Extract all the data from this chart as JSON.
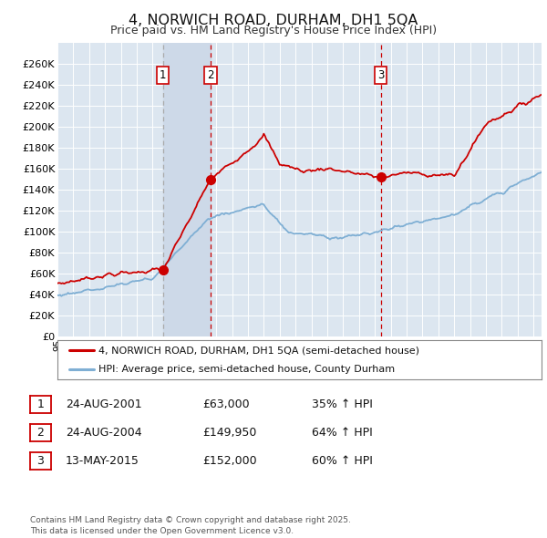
{
  "title": "4, NORWICH ROAD, DURHAM, DH1 5QA",
  "subtitle": "Price paid vs. HM Land Registry's House Price Index (HPI)",
  "background_color": "#ffffff",
  "plot_bg_color": "#dce6f0",
  "grid_color": "#ffffff",
  "red_line_color": "#cc0000",
  "blue_line_color": "#7fafd4",
  "sale_marker_color": "#cc0000",
  "vline_color_gray": "#aaaaaa",
  "vline_color_red": "#cc0000",
  "sale_shade_color": "#cdd9e8",
  "ylim": [
    0,
    280000
  ],
  "yticks": [
    0,
    20000,
    40000,
    60000,
    80000,
    100000,
    120000,
    140000,
    160000,
    180000,
    200000,
    220000,
    240000,
    260000
  ],
  "ytick_labels": [
    "£0",
    "£20K",
    "£40K",
    "£60K",
    "£80K",
    "£100K",
    "£120K",
    "£140K",
    "£160K",
    "£180K",
    "£200K",
    "£220K",
    "£240K",
    "£260K"
  ],
  "sale_dates": [
    2001.65,
    2004.65,
    2015.37
  ],
  "sale_prices": [
    63000,
    149950,
    152000
  ],
  "sale_labels": [
    "1",
    "2",
    "3"
  ],
  "legend_line1": "4, NORWICH ROAD, DURHAM, DH1 5QA (semi-detached house)",
  "legend_line2": "HPI: Average price, semi-detached house, County Durham",
  "table_rows": [
    [
      "1",
      "24-AUG-2001",
      "£63,000",
      "35% ↑ HPI"
    ],
    [
      "2",
      "24-AUG-2004",
      "£149,950",
      "64% ↑ HPI"
    ],
    [
      "3",
      "13-MAY-2015",
      "£152,000",
      "60% ↑ HPI"
    ]
  ],
  "footnote": "Contains HM Land Registry data © Crown copyright and database right 2025.\nThis data is licensed under the Open Government Licence v3.0.",
  "xstart": 1995.0,
  "xend": 2025.5
}
